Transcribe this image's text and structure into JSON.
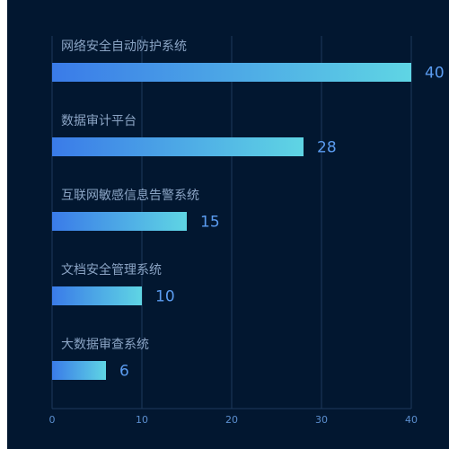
{
  "chart_data": {
    "type": "bar",
    "orientation": "horizontal",
    "categories": [
      "网络安全自动防护系统",
      "数据审计平台",
      "互联网敏感信息告警系统",
      "文档安全管理系统",
      "大数据审查系统"
    ],
    "values": [
      40,
      28,
      15,
      10,
      6
    ],
    "xlim": [
      0,
      40
    ],
    "x_ticks": [
      "0",
      "10",
      "20",
      "30",
      "40"
    ],
    "grid": true,
    "colors": {
      "background": "#021730",
      "bar_start": "#3a7be8",
      "bar_end": "#5fd5e4",
      "value_text": "#5b9cf0",
      "label_text": "#8ba4c4",
      "grid": "#1f3a5c",
      "tick_text": "#5b8fcf"
    }
  }
}
